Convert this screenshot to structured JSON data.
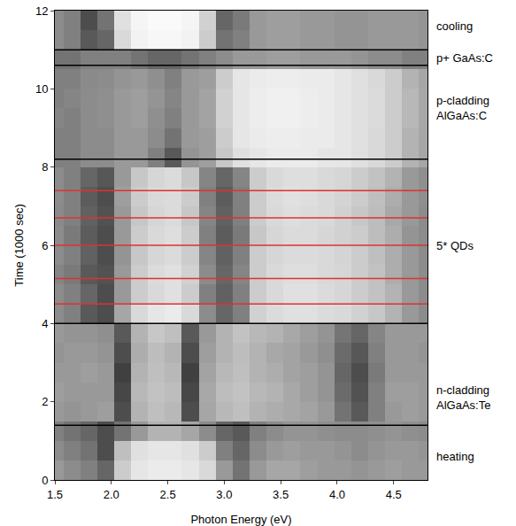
{
  "chart_data": {
    "type": "heatmap",
    "x_label": "Photon Energy (eV)",
    "y_label": "Time (1000 sec)",
    "xlim": [
      1.5,
      4.8
    ],
    "xticks": [
      1.5,
      {
        "value": 2,
        "label": "2.0"
      },
      2.5,
      {
        "value": 3,
        "label": "3.0"
      },
      3.5,
      {
        "value": 4,
        "label": "4.0"
      },
      4.5
    ],
    "ylim": [
      0,
      12
    ],
    "yticks": [
      0,
      2,
      4,
      6,
      8,
      10,
      12
    ],
    "zlim": [
      0,
      1
    ],
    "x": [
      1.5,
      1.65,
      1.8,
      1.95,
      2.1,
      2.25,
      2.4,
      2.55,
      2.7,
      2.85,
      3.0,
      3.15,
      3.3,
      3.45,
      3.6,
      3.75,
      3.9,
      4.05,
      4.2,
      4.35,
      4.5,
      4.65,
      4.8
    ],
    "y": [
      0.25,
      0.75,
      1.25,
      1.75,
      2.25,
      2.75,
      3.25,
      3.75,
      4.25,
      4.75,
      5.25,
      5.75,
      6.25,
      6.75,
      7.25,
      7.75,
      8.25,
      8.75,
      9.25,
      9.75,
      10.25,
      10.75,
      11.25,
      11.75
    ],
    "cells": [
      [
        0.6,
        0.55,
        0.5,
        0.4,
        0.8,
        0.9,
        0.92,
        0.92,
        0.9,
        0.85,
        0.6,
        0.45,
        0.6,
        0.65,
        0.65,
        0.62,
        0.6,
        0.6,
        0.58,
        0.6,
        0.62,
        0.6,
        0.6
      ],
      [
        0.55,
        0.5,
        0.45,
        0.3,
        0.75,
        0.88,
        0.9,
        0.9,
        0.88,
        0.8,
        0.5,
        0.4,
        0.55,
        0.6,
        0.62,
        0.6,
        0.6,
        0.58,
        0.55,
        0.58,
        0.6,
        0.6,
        0.58
      ],
      [
        0.5,
        0.45,
        0.4,
        0.3,
        0.45,
        0.6,
        0.7,
        0.7,
        0.65,
        0.55,
        0.4,
        0.35,
        0.5,
        0.55,
        0.58,
        0.58,
        0.56,
        0.55,
        0.55,
        0.56,
        0.58,
        0.56,
        0.55
      ],
      [
        0.6,
        0.58,
        0.6,
        0.62,
        0.3,
        0.7,
        0.75,
        0.72,
        0.3,
        0.65,
        0.72,
        0.75,
        0.7,
        0.68,
        0.66,
        0.64,
        0.6,
        0.45,
        0.35,
        0.5,
        0.6,
        0.62,
        0.6
      ],
      [
        0.62,
        0.6,
        0.6,
        0.6,
        0.28,
        0.72,
        0.76,
        0.74,
        0.28,
        0.66,
        0.74,
        0.76,
        0.72,
        0.7,
        0.66,
        0.62,
        0.58,
        0.42,
        0.32,
        0.5,
        0.62,
        0.62,
        0.6
      ],
      [
        0.6,
        0.6,
        0.62,
        0.6,
        0.25,
        0.7,
        0.75,
        0.72,
        0.25,
        0.64,
        0.72,
        0.75,
        0.7,
        0.68,
        0.64,
        0.62,
        0.58,
        0.4,
        0.3,
        0.48,
        0.6,
        0.6,
        0.6
      ],
      [
        0.58,
        0.6,
        0.6,
        0.58,
        0.3,
        0.68,
        0.74,
        0.7,
        0.3,
        0.62,
        0.7,
        0.74,
        0.7,
        0.66,
        0.64,
        0.6,
        0.56,
        0.42,
        0.34,
        0.5,
        0.6,
        0.6,
        0.58
      ],
      [
        0.6,
        0.58,
        0.58,
        0.56,
        0.35,
        0.7,
        0.78,
        0.75,
        0.35,
        0.6,
        0.7,
        0.76,
        0.72,
        0.7,
        0.66,
        0.62,
        0.58,
        0.46,
        0.4,
        0.52,
        0.6,
        0.6,
        0.6
      ],
      [
        0.55,
        0.5,
        0.35,
        0.3,
        0.65,
        0.85,
        0.9,
        0.92,
        0.85,
        0.55,
        0.4,
        0.5,
        0.82,
        0.86,
        0.88,
        0.88,
        0.86,
        0.85,
        0.82,
        0.78,
        0.7,
        0.6,
        0.55
      ],
      [
        0.55,
        0.5,
        0.4,
        0.3,
        0.6,
        0.8,
        0.85,
        0.88,
        0.8,
        0.5,
        0.38,
        0.5,
        0.8,
        0.85,
        0.88,
        0.88,
        0.86,
        0.84,
        0.8,
        0.76,
        0.7,
        0.6,
        0.55
      ],
      [
        0.52,
        0.48,
        0.35,
        0.32,
        0.6,
        0.8,
        0.86,
        0.88,
        0.82,
        0.55,
        0.4,
        0.52,
        0.8,
        0.85,
        0.87,
        0.87,
        0.85,
        0.84,
        0.8,
        0.76,
        0.68,
        0.6,
        0.55
      ],
      [
        0.55,
        0.5,
        0.38,
        0.3,
        0.58,
        0.78,
        0.84,
        0.86,
        0.8,
        0.52,
        0.38,
        0.5,
        0.8,
        0.84,
        0.86,
        0.86,
        0.85,
        0.83,
        0.8,
        0.75,
        0.68,
        0.6,
        0.55
      ],
      [
        0.55,
        0.48,
        0.36,
        0.3,
        0.6,
        0.8,
        0.85,
        0.87,
        0.8,
        0.5,
        0.36,
        0.48,
        0.78,
        0.84,
        0.86,
        0.86,
        0.84,
        0.82,
        0.8,
        0.74,
        0.68,
        0.58,
        0.55
      ],
      [
        0.54,
        0.5,
        0.38,
        0.32,
        0.6,
        0.78,
        0.84,
        0.86,
        0.78,
        0.52,
        0.38,
        0.5,
        0.8,
        0.85,
        0.87,
        0.86,
        0.85,
        0.82,
        0.78,
        0.74,
        0.66,
        0.6,
        0.55
      ],
      [
        0.55,
        0.5,
        0.36,
        0.3,
        0.62,
        0.8,
        0.85,
        0.86,
        0.8,
        0.5,
        0.36,
        0.5,
        0.8,
        0.86,
        0.88,
        0.87,
        0.85,
        0.83,
        0.8,
        0.75,
        0.68,
        0.6,
        0.56
      ],
      [
        0.55,
        0.5,
        0.4,
        0.34,
        0.6,
        0.78,
        0.84,
        0.86,
        0.78,
        0.52,
        0.4,
        0.52,
        0.8,
        0.85,
        0.87,
        0.87,
        0.85,
        0.84,
        0.8,
        0.76,
        0.7,
        0.6,
        0.56
      ],
      [
        0.5,
        0.5,
        0.55,
        0.55,
        0.6,
        0.6,
        0.5,
        0.35,
        0.58,
        0.62,
        0.78,
        0.88,
        0.9,
        0.92,
        0.92,
        0.92,
        0.9,
        0.9,
        0.88,
        0.85,
        0.8,
        0.7,
        0.65
      ],
      [
        0.5,
        0.5,
        0.55,
        0.55,
        0.6,
        0.6,
        0.55,
        0.45,
        0.6,
        0.62,
        0.8,
        0.9,
        0.92,
        0.93,
        0.93,
        0.92,
        0.92,
        0.9,
        0.88,
        0.85,
        0.8,
        0.7,
        0.65
      ],
      [
        0.52,
        0.5,
        0.55,
        0.56,
        0.6,
        0.62,
        0.56,
        0.5,
        0.6,
        0.64,
        0.82,
        0.9,
        0.93,
        0.94,
        0.94,
        0.93,
        0.92,
        0.9,
        0.88,
        0.86,
        0.8,
        0.72,
        0.66
      ],
      [
        0.5,
        0.52,
        0.55,
        0.56,
        0.6,
        0.62,
        0.58,
        0.52,
        0.6,
        0.64,
        0.82,
        0.9,
        0.93,
        0.94,
        0.94,
        0.93,
        0.92,
        0.9,
        0.88,
        0.86,
        0.8,
        0.72,
        0.66
      ],
      [
        0.5,
        0.5,
        0.54,
        0.55,
        0.58,
        0.6,
        0.56,
        0.5,
        0.6,
        0.62,
        0.8,
        0.9,
        0.92,
        0.93,
        0.93,
        0.92,
        0.92,
        0.9,
        0.88,
        0.85,
        0.8,
        0.7,
        0.65
      ],
      [
        0.45,
        0.45,
        0.5,
        0.5,
        0.5,
        0.45,
        0.4,
        0.4,
        0.45,
        0.5,
        0.55,
        0.6,
        0.6,
        0.62,
        0.62,
        0.6,
        0.6,
        0.6,
        0.58,
        0.55,
        0.55,
        0.5,
        0.5
      ],
      [
        0.55,
        0.5,
        0.35,
        0.4,
        0.85,
        0.95,
        0.97,
        0.97,
        0.95,
        0.8,
        0.45,
        0.5,
        0.6,
        0.62,
        0.62,
        0.6,
        0.6,
        0.58,
        0.58,
        0.6,
        0.6,
        0.6,
        0.58
      ],
      [
        0.55,
        0.5,
        0.3,
        0.45,
        0.88,
        0.96,
        0.98,
        0.98,
        0.96,
        0.82,
        0.4,
        0.48,
        0.6,
        0.62,
        0.62,
        0.6,
        0.6,
        0.58,
        0.58,
        0.6,
        0.6,
        0.6,
        0.58
      ]
    ],
    "lines": [
      {
        "values": [
          1.4,
          4.0,
          8.2,
          10.6,
          11.0
        ],
        "color": "#000000"
      },
      {
        "values": [
          4.5,
          5.15,
          6.0,
          6.7,
          7.4
        ],
        "color": "#e03030"
      }
    ],
    "annotations": [
      {
        "text": [
          "cooling"
        ],
        "y": 11.6
      },
      {
        "text": [
          "p+ GaAs:C"
        ],
        "y": 10.8
      },
      {
        "text": [
          "p-cladding",
          "AlGaAs:C"
        ],
        "y": 9.5
      },
      {
        "text": [
          "5* QDs"
        ],
        "y": 6.0
      },
      {
        "text": [
          "n-cladding",
          "AlGaAs:Te"
        ],
        "y": 2.1
      },
      {
        "text": [
          "heating"
        ],
        "y": 0.6
      }
    ]
  }
}
